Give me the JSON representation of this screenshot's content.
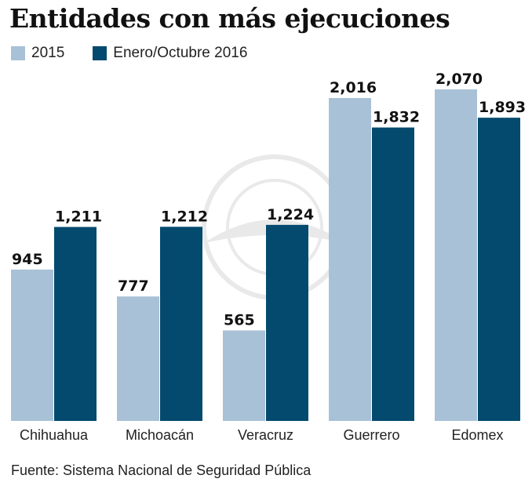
{
  "chart_data": {
    "type": "bar",
    "title": "Entidades con más ejecuciones",
    "categories": [
      "Chihuahua",
      "Michoacán",
      "Veracruz",
      "Guerrero",
      "Edomex"
    ],
    "series": [
      {
        "name": "2015",
        "color": "#a9c1d6",
        "values": [
          945,
          777,
          565,
          2016,
          2070
        ],
        "labels": [
          "945",
          "777",
          "565",
          "2,016",
          "2,070"
        ]
      },
      {
        "name": "Enero/Octubre 2016",
        "color": "#034a6e",
        "values": [
          1211,
          1212,
          1224,
          1832,
          1893
        ],
        "labels": [
          "1,211",
          "1,212",
          "1,224",
          "1,832",
          "1,893"
        ]
      }
    ],
    "xlabel": "",
    "ylabel": "",
    "ylim": [
      0,
      2070
    ],
    "grid": false,
    "legend_position": "top-left",
    "source": "Fuente: Sistema Nacional de Seguridad Pública"
  },
  "legend": {
    "items": [
      {
        "label": "2015",
        "color": "#a9c1d6"
      },
      {
        "label": "Enero/Octubre 2016",
        "color": "#034a6e"
      }
    ]
  }
}
